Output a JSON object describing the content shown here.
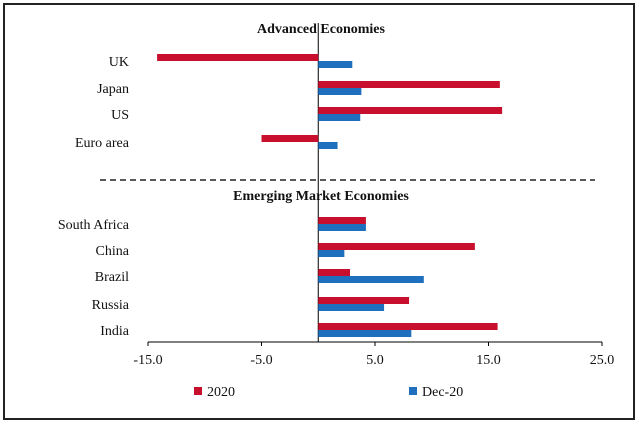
{
  "chart_data": {
    "type": "bar",
    "orientation": "horizontal",
    "groups": [
      {
        "title": "Advanced Economies",
        "categories": [
          "UK",
          "Japan",
          "US",
          "Euro area"
        ],
        "series": [
          {
            "name": "2020",
            "values": [
              -14.2,
              16.0,
              16.2,
              -5.0
            ]
          },
          {
            "name": "Dec-20",
            "values": [
              3.0,
              3.8,
              3.7,
              1.7
            ]
          }
        ]
      },
      {
        "title": "Emerging Market Economies",
        "categories": [
          "South Africa",
          "China",
          "Brazil",
          "Russia",
          "India"
        ],
        "series": [
          {
            "name": "2020",
            "values": [
              4.2,
              13.8,
              2.8,
              8.0,
              15.8
            ]
          },
          {
            "name": "Dec-20",
            "values": [
              4.2,
              2.3,
              9.3,
              5.8,
              8.2
            ]
          }
        ]
      }
    ],
    "xticks": [
      "-15.0",
      "-5.0",
      "5.0",
      "15.0",
      "25.0"
    ],
    "xlim": [
      -15,
      25
    ],
    "legend": [
      {
        "name": "2020",
        "color": "#c8102e"
      },
      {
        "name": "Dec-20",
        "color": "#1f6fbf"
      }
    ],
    "legend_position": "bottom",
    "grid": false
  }
}
